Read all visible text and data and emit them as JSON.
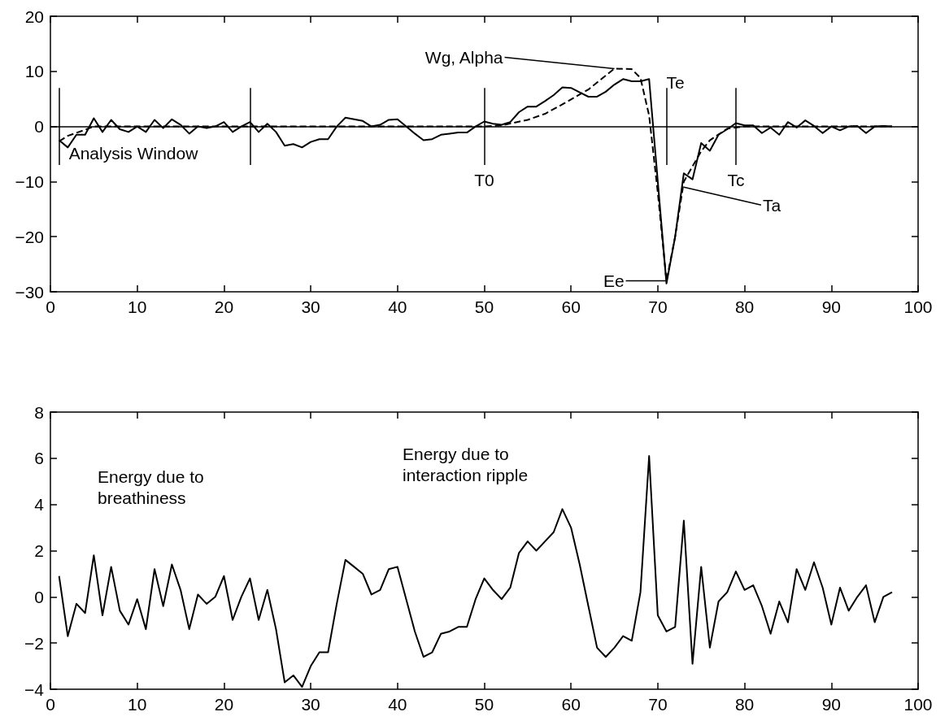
{
  "chart_data": [
    {
      "type": "line",
      "xlim": [
        0,
        100
      ],
      "xticks": [
        0,
        10,
        20,
        30,
        40,
        50,
        60,
        70,
        80,
        90,
        100
      ],
      "ylim": [
        -30,
        20
      ],
      "yticks": [
        -30,
        -20,
        -10,
        0,
        10,
        20
      ],
      "grid": false,
      "marker": "none",
      "x": [
        1,
        2,
        3,
        4,
        5,
        6,
        7,
        8,
        9,
        10,
        11,
        12,
        13,
        14,
        15,
        16,
        17,
        18,
        19,
        20,
        21,
        22,
        23,
        24,
        25,
        26,
        27,
        28,
        29,
        30,
        31,
        32,
        33,
        34,
        35,
        36,
        37,
        38,
        39,
        40,
        41,
        42,
        43,
        44,
        45,
        46,
        47,
        48,
        49,
        50,
        51,
        52,
        53,
        54,
        55,
        56,
        57,
        58,
        59,
        60,
        61,
        62,
        63,
        64,
        65,
        66,
        67,
        68,
        69,
        70,
        71,
        72,
        73,
        74,
        75,
        76,
        77,
        78,
        79,
        80,
        81,
        82,
        83,
        84,
        85,
        86,
        87,
        88,
        89,
        90,
        91,
        92,
        93,
        94,
        95,
        96,
        97
      ],
      "series": [
        {
          "color": "#000000",
          "line_style": "solid",
          "values": [
            -2.5,
            -3.8,
            -1.5,
            -1.5,
            1.5,
            -1,
            1.2,
            -0.5,
            -1,
            0,
            -1,
            1.2,
            -0.3,
            1.3,
            0.3,
            -1.3,
            0,
            -0.3,
            0,
            0.8,
            -1,
            0,
            0.8,
            -1,
            0.5,
            -1,
            -3.5,
            -3.2,
            -3.8,
            -2.8,
            -2.3,
            -2.3,
            0,
            1.6,
            1.3,
            1,
            0,
            0.3,
            1.2,
            1.3,
            0,
            -1.3,
            -2.5,
            -2.3,
            -1.5,
            -1.3,
            -1.1,
            -1.1,
            0,
            0.9,
            0.5,
            0.3,
            0.8,
            2.6,
            3.6,
            3.6,
            4.6,
            5.7,
            7.1,
            7,
            6.2,
            5.4,
            5.4,
            6.3,
            7.6,
            8.6,
            8.2,
            8.2,
            8.6,
            -10,
            -28.5,
            -20,
            -8.5,
            -9.6,
            -3,
            -4.4,
            -1.5,
            -0.5,
            0.6,
            0.2,
            0.2,
            -1.2,
            -0.2,
            -1.5,
            0.8,
            -0.2,
            1.1,
            0.1,
            -1.2,
            0,
            -0.7,
            0,
            0.1,
            -1.2,
            0,
            0.1,
            0
          ]
        },
        {
          "color": "#000000",
          "line_style": "dashed",
          "x": [
            1,
            2,
            4,
            5,
            50,
            52,
            55,
            57,
            59,
            62,
            65,
            67,
            68,
            69,
            70,
            71,
            72,
            73,
            75,
            76,
            78,
            80,
            97
          ],
          "values": [
            -2.7,
            -1.7,
            -0.6,
            0,
            0,
            0.2,
            1.2,
            2.3,
            4,
            6.7,
            10.5,
            10.4,
            8.8,
            2,
            -12,
            -28,
            -20,
            -10,
            -4.5,
            -2.5,
            -0.4,
            0,
            0
          ]
        }
      ],
      "ref_lines": [
        {
          "axis": "y",
          "value": 0,
          "label": null
        },
        {
          "axis": "x",
          "value": 1,
          "label": null
        },
        {
          "axis": "x",
          "value": 23,
          "label": null
        },
        {
          "axis": "x",
          "value": 50,
          "label": "T0"
        },
        {
          "axis": "x",
          "value": 71,
          "label": "Te"
        },
        {
          "axis": "x",
          "value": 79,
          "label": "Tc"
        }
      ],
      "annotations": [
        {
          "text": "Analysis Window",
          "x": 1,
          "y": -3
        },
        {
          "text": "Wg, Alpha",
          "x": 65,
          "y": 10.5
        },
        {
          "text": "Ta",
          "x": 73,
          "y": -11
        },
        {
          "text": "Ee",
          "x": 71,
          "y": -28
        }
      ]
    },
    {
      "type": "line",
      "xlim": [
        0,
        100
      ],
      "xticks": [
        0,
        10,
        20,
        30,
        40,
        50,
        60,
        70,
        80,
        90,
        100
      ],
      "ylim": [
        -4,
        8
      ],
      "yticks": [
        -4,
        -2,
        0,
        2,
        4,
        6,
        8
      ],
      "grid": false,
      "marker": "none",
      "x": [
        1,
        2,
        3,
        4,
        5,
        6,
        7,
        8,
        9,
        10,
        11,
        12,
        13,
        14,
        15,
        16,
        17,
        18,
        19,
        20,
        21,
        22,
        23,
        24,
        25,
        26,
        27,
        28,
        29,
        30,
        31,
        32,
        33,
        34,
        35,
        36,
        37,
        38,
        39,
        40,
        41,
        42,
        43,
        44,
        45,
        46,
        47,
        48,
        49,
        50,
        51,
        52,
        53,
        54,
        55,
        56,
        57,
        58,
        59,
        60,
        61,
        62,
        63,
        64,
        65,
        66,
        67,
        68,
        69,
        70,
        71,
        72,
        73,
        74,
        75,
        76,
        77,
        78,
        79,
        80,
        81,
        82,
        83,
        84,
        85,
        86,
        87,
        88,
        89,
        90,
        91,
        92,
        93,
        94,
        95,
        96,
        97
      ],
      "series": [
        {
          "color": "#000000",
          "line_style": "solid",
          "values": [
            0.9,
            -1.7,
            -0.3,
            -0.7,
            1.8,
            -0.8,
            1.3,
            -0.6,
            -1.2,
            -0.1,
            -1.4,
            1.2,
            -0.4,
            1.4,
            0.3,
            -1.4,
            0.1,
            -0.3,
            0,
            0.9,
            -1,
            0,
            0.8,
            -1,
            0.3,
            -1.4,
            -3.7,
            -3.4,
            -3.9,
            -3,
            -2.4,
            -2.4,
            -0.3,
            1.6,
            1.3,
            1,
            0.1,
            0.3,
            1.2,
            1.3,
            -0.1,
            -1.5,
            -2.6,
            -2.4,
            -1.6,
            -1.5,
            -1.3,
            -1.3,
            -0.1,
            0.8,
            0.3,
            -0.1,
            0.4,
            1.9,
            2.4,
            2,
            2.4,
            2.8,
            3.8,
            3,
            1.4,
            -0.4,
            -2.2,
            -2.6,
            -2.2,
            -1.7,
            -1.9,
            0.2,
            6.1,
            -0.8,
            -1.5,
            -1.3,
            3.3,
            -2.9,
            1.3,
            -2.2,
            -0.2,
            0.2,
            1.1,
            0.3,
            0.5,
            -0.4,
            -1.6,
            -0.2,
            -1.1,
            1.2,
            0.3,
            1.5,
            0.4,
            -1.2,
            0.4,
            -0.6,
            0,
            0.5,
            -1.1,
            0,
            0.2
          ]
        }
      ],
      "annotations": [
        "Energy due to\nbreathiness",
        "Energy due to\ninteraction ripple"
      ]
    }
  ]
}
